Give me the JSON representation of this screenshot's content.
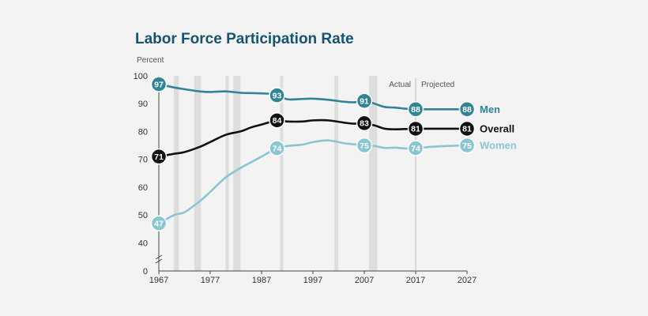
{
  "chart_data": {
    "type": "line",
    "title": "Labor Force Participation Rate",
    "ylabel": "Percent",
    "xlabel": "",
    "ylim": [
      0,
      100
    ],
    "y_ticks": [
      0,
      40,
      50,
      60,
      70,
      80,
      90,
      100
    ],
    "x_ticks": [
      "1967",
      "1977",
      "1987",
      "1997",
      "2007",
      "2017",
      "2027"
    ],
    "xlim": [
      1967,
      2027
    ],
    "annotations": {
      "actual": "Actual",
      "projected": "Projected",
      "divider_year": 2017
    },
    "recessions": [
      [
        1969.9,
        1970.9
      ],
      [
        1973.9,
        1975.2
      ],
      [
        1980.0,
        1980.5
      ],
      [
        1981.5,
        1982.9
      ],
      [
        1990.6,
        1991.2
      ],
      [
        2001.2,
        2001.9
      ],
      [
        2007.9,
        2009.5
      ]
    ],
    "grid": false,
    "legend": "right-end labels",
    "series": [
      {
        "name": "Men",
        "color": "#2f8496",
        "x": [
          1967,
          1970,
          1972,
          1975,
          1977,
          1980,
          1983,
          1985,
          1987,
          1990,
          1992,
          1995,
          1997,
          2000,
          2003,
          2005,
          2007,
          2009,
          2011,
          2013,
          2015,
          2017,
          2020,
          2023,
          2027
        ],
        "y": [
          97,
          95.8,
          95.2,
          94.4,
          94.2,
          94.4,
          93.9,
          93.8,
          93.7,
          93.3,
          91.6,
          91.7,
          91.8,
          91.4,
          90.7,
          90.5,
          91,
          90,
          88.8,
          88.6,
          88.2,
          88,
          88,
          88,
          88
        ],
        "labels": [
          {
            "x": 1967,
            "y": 97,
            "text": "97"
          },
          {
            "x": 1990,
            "y": 93,
            "text": "93"
          },
          {
            "x": 2007,
            "y": 91,
            "text": "91"
          },
          {
            "x": 2017,
            "y": 88,
            "text": "88"
          },
          {
            "x": 2027,
            "y": 88,
            "text": "88"
          }
        ]
      },
      {
        "name": "Overall",
        "color": "#111111",
        "x": [
          1967,
          1970,
          1972,
          1975,
          1977,
          1980,
          1983,
          1985,
          1987,
          1990,
          1992,
          1995,
          1997,
          2000,
          2003,
          2005,
          2007,
          2009,
          2011,
          2013,
          2015,
          2017,
          2020,
          2023,
          2027
        ],
        "y": [
          71,
          72,
          72.6,
          74.5,
          76.2,
          78.8,
          80.1,
          81.5,
          82.5,
          84,
          83.6,
          83.6,
          84,
          84,
          83.2,
          82.8,
          83,
          82.2,
          81,
          80.8,
          80.9,
          81,
          81,
          81,
          81
        ],
        "labels": [
          {
            "x": 1967,
            "y": 71,
            "text": "71"
          },
          {
            "x": 1990,
            "y": 84,
            "text": "84"
          },
          {
            "x": 2007,
            "y": 83,
            "text": "83"
          },
          {
            "x": 2017,
            "y": 81,
            "text": "81"
          },
          {
            "x": 2027,
            "y": 81,
            "text": "81"
          }
        ]
      },
      {
        "name": "Women",
        "color": "#8ac6d1",
        "x": [
          1967,
          1970,
          1972,
          1975,
          1977,
          1980,
          1983,
          1985,
          1987,
          1990,
          1992,
          1995,
          1997,
          2000,
          2003,
          2005,
          2007,
          2009,
          2011,
          2013,
          2015,
          2017,
          2020,
          2023,
          2027
        ],
        "y": [
          47,
          50,
          51,
          55,
          58.3,
          63.5,
          67,
          69,
          71,
          74,
          74.8,
          75.3,
          76.2,
          76.8,
          75.8,
          75.4,
          75,
          74.8,
          74.1,
          74.2,
          73.9,
          74,
          74.5,
          74.8,
          75
        ],
        "labels": [
          {
            "x": 1967,
            "y": 47,
            "text": "47"
          },
          {
            "x": 1990,
            "y": 74,
            "text": "74"
          },
          {
            "x": 2007,
            "y": 75,
            "text": "75"
          },
          {
            "x": 2017,
            "y": 74,
            "text": "74"
          },
          {
            "x": 2027,
            "y": 75,
            "text": "75"
          }
        ]
      }
    ]
  }
}
